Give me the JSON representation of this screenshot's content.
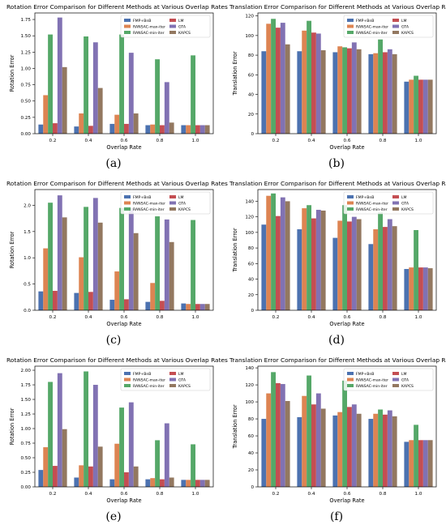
{
  "colors": {
    "FMP+BnB": "#4c72b0",
    "RANSAC-max-iter": "#dd8452",
    "RANSAC-min-iter": "#55a868",
    "LM": "#c44e52",
    "GTA": "#8172b3",
    "KAPCS": "#937860",
    "plot_background": "#ffffff",
    "axis": "#000000"
  },
  "legend_order": [
    "FMP+BnB",
    "RANSAC-max-iter",
    "RANSAC-min-iter",
    "LM",
    "GTA",
    "KAPCS"
  ],
  "chart_data": [
    {
      "panel_label": "(a)",
      "type": "bar",
      "title": "Rotation Error Comparison for Different Methods at Various Overlap Rates",
      "xlabel": "Overlap Rate",
      "ylabel": "Rotation Error",
      "categories": [
        "0.2",
        "0.4",
        "0.6",
        "0.8",
        "1.0"
      ],
      "ylim": [
        0,
        1.85
      ],
      "yticks": [
        "0.00",
        "0.25",
        "0.50",
        "0.75",
        "1.00",
        "1.25",
        "1.50",
        "1.75"
      ],
      "legend_position": "top-right",
      "series": [
        {
          "name": "FMP+BnB",
          "values": [
            0.14,
            0.11,
            0.15,
            0.13,
            0.13
          ]
        },
        {
          "name": "RANSAC-max-iter",
          "values": [
            0.59,
            0.31,
            0.29,
            0.14,
            0.13
          ]
        },
        {
          "name": "RANSAC-min-iter",
          "values": [
            1.52,
            1.49,
            1.52,
            1.14,
            1.2
          ]
        },
        {
          "name": "LM",
          "values": [
            0.16,
            0.12,
            0.15,
            0.13,
            0.13
          ]
        },
        {
          "name": "GTA",
          "values": [
            1.78,
            1.4,
            1.24,
            0.79,
            0.13
          ]
        },
        {
          "name": "KAPCS",
          "values": [
            1.02,
            0.7,
            0.31,
            0.17,
            0.13
          ]
        }
      ]
    },
    {
      "panel_label": "(b)",
      "type": "bar",
      "title": "Translation Error Comparison for Different Methods at Various Overlap Rates",
      "xlabel": "Overlap Rate",
      "ylabel": "Translation Error",
      "categories": [
        "0.2",
        "0.4",
        "0.6",
        "0.8",
        "1.0"
      ],
      "ylim": [
        0,
        123
      ],
      "yticks": [
        "0",
        "20",
        "40",
        "60",
        "80",
        "100",
        "120"
      ],
      "legend_position": "top-right",
      "series": [
        {
          "name": "FMP+BnB",
          "values": [
            84,
            84,
            83,
            81,
            53
          ]
        },
        {
          "name": "RANSAC-max-iter",
          "values": [
            112,
            105,
            89,
            82,
            55
          ]
        },
        {
          "name": "RANSAC-min-iter",
          "values": [
            117,
            115,
            88,
            96,
            59
          ]
        },
        {
          "name": "LM",
          "values": [
            108,
            103,
            87,
            83,
            55
          ]
        },
        {
          "name": "GTA",
          "values": [
            113,
            102,
            93,
            86,
            55
          ]
        },
        {
          "name": "KAPCS",
          "values": [
            91,
            85,
            86,
            81,
            55
          ]
        }
      ]
    },
    {
      "panel_label": "(c)",
      "type": "bar",
      "title": "Rotation Error Comparison for Different Methods at Various Overlap Rates",
      "xlabel": "Overlap Rate",
      "ylabel": "Rotation Error",
      "categories": [
        "0.2",
        "0.4",
        "0.6",
        "0.8",
        "1.0"
      ],
      "ylim": [
        0,
        2.3
      ],
      "yticks": [
        "0.0",
        "0.5",
        "1.0",
        "1.5",
        "2.0"
      ],
      "legend_position": "top-right",
      "series": [
        {
          "name": "FMP+BnB",
          "values": [
            0.36,
            0.33,
            0.2,
            0.16,
            0.13
          ]
        },
        {
          "name": "RANSAC-max-iter",
          "values": [
            1.18,
            1.01,
            0.74,
            0.52,
            0.12
          ]
        },
        {
          "name": "RANSAC-min-iter",
          "values": [
            2.05,
            1.97,
            1.95,
            1.79,
            1.72
          ]
        },
        {
          "name": "LM",
          "values": [
            0.37,
            0.35,
            0.21,
            0.18,
            0.12
          ]
        },
        {
          "name": "GTA",
          "values": [
            2.19,
            2.14,
            1.95,
            1.73,
            0.12
          ]
        },
        {
          "name": "KAPCS",
          "values": [
            1.77,
            1.67,
            1.47,
            1.3,
            0.12
          ]
        }
      ]
    },
    {
      "panel_label": "(d)",
      "type": "bar",
      "title": "Translation Error Comparison for Different Methods at Various Overlap Rates",
      "xlabel": "Overlap Rate",
      "ylabel": "Translation Error",
      "categories": [
        "0.2",
        "0.4",
        "0.6",
        "0.8",
        "1.0"
      ],
      "ylim": [
        0,
        155
      ],
      "yticks": [
        "0",
        "20",
        "40",
        "60",
        "80",
        "100",
        "120",
        "140"
      ],
      "legend_position": "top-right",
      "series": [
        {
          "name": "FMP+BnB",
          "values": [
            110,
            104,
            93,
            85,
            53
          ]
        },
        {
          "name": "RANSAC-max-iter",
          "values": [
            147,
            131,
            115,
            104,
            55
          ]
        },
        {
          "name": "RANSAC-min-iter",
          "values": [
            150,
            135,
            135,
            126,
            103
          ]
        },
        {
          "name": "LM",
          "values": [
            121,
            118,
            114,
            107,
            55
          ]
        },
        {
          "name": "GTA",
          "values": [
            145,
            129,
            120,
            117,
            55
          ]
        },
        {
          "name": "KAPCS",
          "values": [
            140,
            128,
            117,
            108,
            54
          ]
        }
      ]
    },
    {
      "panel_label": "(e)",
      "type": "bar",
      "title": "Rotation Error Comparison for Different Methods at Various Overlap Rates",
      "xlabel": "Overlap Rate",
      "ylabel": "Rotation Error",
      "categories": [
        "0.2",
        "0.4",
        "0.6",
        "0.8",
        "1.0"
      ],
      "ylim": [
        0,
        2.07
      ],
      "yticks": [
        "0.00",
        "0.25",
        "0.50",
        "0.75",
        "1.00",
        "1.25",
        "1.50",
        "1.75",
        "2.00"
      ],
      "legend_position": "top-right",
      "series": [
        {
          "name": "FMP+BnB",
          "values": [
            0.29,
            0.16,
            0.13,
            0.13,
            0.12
          ]
        },
        {
          "name": "RANSAC-max-iter",
          "values": [
            0.68,
            0.37,
            0.74,
            0.15,
            0.12
          ]
        },
        {
          "name": "RANSAC-min-iter",
          "values": [
            1.8,
            1.98,
            1.36,
            0.8,
            0.73
          ]
        },
        {
          "name": "LM",
          "values": [
            0.36,
            0.35,
            0.25,
            0.13,
            0.12
          ]
        },
        {
          "name": "GTA",
          "values": [
            1.95,
            1.75,
            1.45,
            1.09,
            0.12
          ]
        },
        {
          "name": "KAPCS",
          "values": [
            0.99,
            0.69,
            0.35,
            0.16,
            0.12
          ]
        }
      ]
    },
    {
      "panel_label": "(f)",
      "type": "bar",
      "title": "Translation Error Comparison for Different Methods at Various Overlap Rates",
      "xlabel": "Overlap Rate",
      "ylabel": "Translation Error",
      "categories": [
        "0.2",
        "0.4",
        "0.6",
        "0.8",
        "1.0"
      ],
      "ylim": [
        0,
        142
      ],
      "yticks": [
        "0",
        "20",
        "40",
        "60",
        "80",
        "100",
        "120",
        "140"
      ],
      "legend_position": "top-right",
      "series": [
        {
          "name": "FMP+BnB",
          "values": [
            80,
            82,
            84,
            80,
            53
          ]
        },
        {
          "name": "RANSAC-max-iter",
          "values": [
            110,
            107,
            88,
            86,
            55
          ]
        },
        {
          "name": "RANSAC-min-iter",
          "values": [
            135,
            131,
            125,
            91,
            73
          ]
        },
        {
          "name": "LM",
          "values": [
            122,
            97,
            94,
            85,
            55
          ]
        },
        {
          "name": "GTA",
          "values": [
            121,
            110,
            97,
            90,
            55
          ]
        },
        {
          "name": "KAPCS",
          "values": [
            101,
            92,
            86,
            83,
            55
          ]
        }
      ]
    }
  ]
}
